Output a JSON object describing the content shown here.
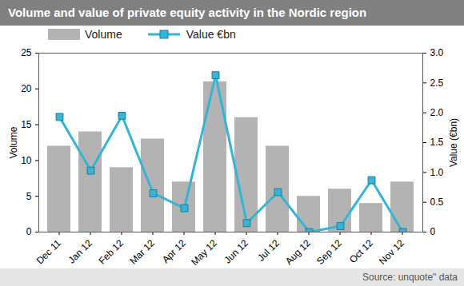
{
  "chart_data": {
    "type": "bar",
    "title": "Volume and value of private equity activity in the Nordic region",
    "source": "Source: unquote\" data",
    "categories": [
      "Dec 11",
      "Jan 12",
      "Feb 12",
      "Mar 12",
      "Apr 12",
      "May 12",
      "Jun 12",
      "Jul 12",
      "Aug 12",
      "Sep 12",
      "Oct 12",
      "Nov 12"
    ],
    "series": [
      {
        "name": "Volume",
        "type": "bar",
        "color": "#b3b3b3",
        "values": [
          12,
          14,
          9,
          13,
          7,
          21,
          16,
          12,
          5,
          6,
          4,
          7
        ]
      },
      {
        "name": "Value €bn",
        "type": "line",
        "axis": "y2",
        "color": "#35b4d6",
        "marker": "square",
        "values": [
          1.93,
          1.03,
          1.95,
          0.65,
          0.4,
          2.63,
          0.15,
          0.67,
          0.0,
          0.1,
          0.87,
          0.0
        ]
      }
    ],
    "y_label": "Volume",
    "y2_label": "Value (€bn)",
    "ylim": [
      0,
      25
    ],
    "yticks": [
      0,
      5,
      10,
      15,
      20,
      25
    ],
    "y2lim": [
      0,
      3
    ],
    "y2ticks": [
      0,
      0.5,
      {
        "value": 1,
        "label": "1.0"
      },
      1.5,
      {
        "value": 2,
        "label": "2.0"
      },
      2.5,
      {
        "value": 3,
        "label": "3.0"
      }
    ],
    "legend": "top-left"
  }
}
